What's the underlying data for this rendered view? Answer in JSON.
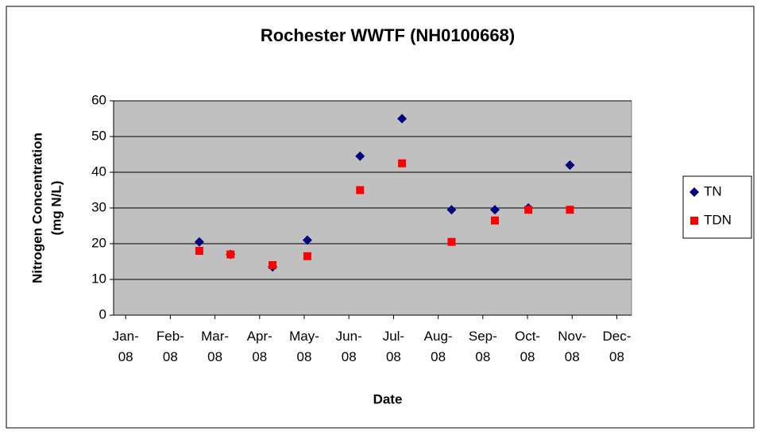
{
  "chart_data": {
    "type": "scatter",
    "title": "Rochester WWTF (NH0100668)",
    "xlabel": "Date",
    "ylabel": [
      "Nitrogen Concentration",
      "(mg N/L)"
    ],
    "xlim": [
      -0.27,
      11.33
    ],
    "xticks": [
      {
        "value": 0,
        "label": "Jan-08"
      },
      {
        "value": 1,
        "label": "Feb-08"
      },
      {
        "value": 2,
        "label": "Mar-08"
      },
      {
        "value": 3,
        "label": "Apr-08"
      },
      {
        "value": 4,
        "label": "May-08"
      },
      {
        "value": 5,
        "label": "Jun-08"
      },
      {
        "value": 6,
        "label": "Jul-08"
      },
      {
        "value": 7,
        "label": "Aug-08"
      },
      {
        "value": 8,
        "label": "Sep-08"
      },
      {
        "value": 9,
        "label": "Oct-08"
      },
      {
        "value": 10,
        "label": "Nov-08"
      },
      {
        "value": 11,
        "label": "Dec-08"
      }
    ],
    "ylim": [
      0,
      60
    ],
    "yticks": [
      0,
      10,
      20,
      30,
      40,
      50,
      60
    ],
    "grid": true,
    "x": [
      1.65,
      2.35,
      3.29,
      4.07,
      5.25,
      6.19,
      7.3,
      8.27,
      9.02,
      9.95
    ],
    "series": [
      {
        "name": "TN",
        "color": "#000080",
        "marker": "diamond",
        "values": [
          20.5,
          17,
          13.5,
          21,
          44.5,
          55,
          29.5,
          29.5,
          30,
          42
        ]
      },
      {
        "name": "TDN",
        "color": "#ff0000",
        "marker": "square",
        "values": [
          18,
          17,
          14,
          16.5,
          35,
          42.5,
          20.5,
          26.5,
          29.5,
          29.5
        ]
      }
    ],
    "legend": "right"
  }
}
